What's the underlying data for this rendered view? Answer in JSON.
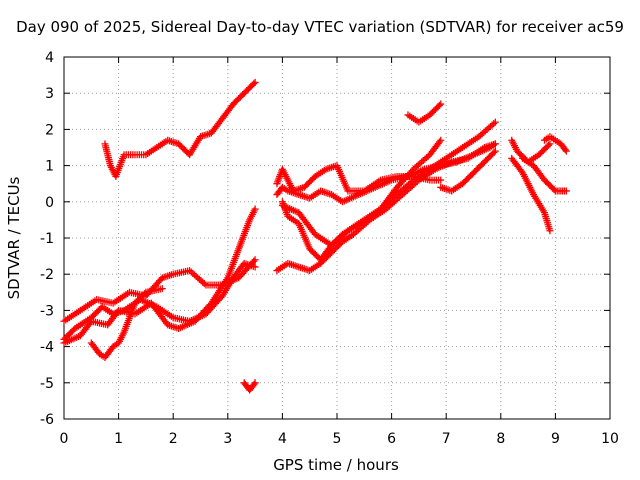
{
  "chart_data": {
    "type": "scatter",
    "title": "Day 090 of 2025, Sidereal Day-to-day VTEC variation (SDTVAR) for receiver ac59",
    "xlabel": "GPS time / hours",
    "ylabel": "SDTVAR / TECUs",
    "xlim": [
      0,
      10
    ],
    "ylim": [
      -6,
      4
    ],
    "x_ticks": [
      "0",
      "1",
      "2",
      "3",
      "4",
      "5",
      "6",
      "7",
      "8",
      "9",
      "10"
    ],
    "y_ticks": [
      "-6",
      "-5",
      "-4",
      "-3",
      "-2",
      "-1",
      "0",
      "1",
      "2",
      "3",
      "4"
    ],
    "grid": true,
    "marker": "+",
    "color": "#ff0000",
    "series": [
      {
        "x": [
          0.0,
          0.3,
          0.6,
          0.9,
          1.2,
          1.5,
          1.8,
          2.0,
          2.3,
          2.6,
          2.9,
          3.2,
          3.5
        ],
        "y": [
          -3.3,
          -3.0,
          -2.7,
          -2.8,
          -2.5,
          -2.6,
          -2.1,
          -2.0,
          -1.9,
          -2.3,
          -2.3,
          -2.1,
          -1.6
        ]
      },
      {
        "x": [
          0.0,
          0.2,
          0.5,
          0.7,
          0.9,
          1.1,
          1.4,
          1.7,
          2.0,
          2.3,
          2.6,
          2.9,
          3.1,
          3.3,
          3.5
        ],
        "y": [
          -3.8,
          -3.5,
          -3.2,
          -2.9,
          -3.1,
          -3.0,
          -2.7,
          -2.9,
          -3.2,
          -3.3,
          -3.1,
          -2.6,
          -2.1,
          -1.7,
          -1.8
        ]
      },
      {
        "x": [
          0.0,
          0.3,
          0.5,
          0.8,
          1.0,
          1.3,
          1.6,
          1.9,
          2.1,
          2.4,
          2.7,
          3.0,
          3.2,
          3.4,
          3.5
        ],
        "y": [
          -3.9,
          -3.7,
          -3.3,
          -3.4,
          -3.0,
          -3.1,
          -2.8,
          -3.4,
          -3.5,
          -3.3,
          -2.8,
          -2.1,
          -1.3,
          -0.5,
          -0.2
        ]
      },
      {
        "x": [
          0.5,
          0.65,
          0.75,
          0.9,
          1.0,
          1.1,
          1.3,
          1.5,
          1.8
        ],
        "y": [
          -3.9,
          -4.2,
          -4.3,
          -4.0,
          -3.9,
          -3.6,
          -2.8,
          -2.5,
          -2.4
        ]
      },
      {
        "x": [
          0.75,
          0.85,
          0.95,
          1.1,
          1.3,
          1.5,
          1.7,
          1.9,
          2.1,
          2.3,
          2.5,
          2.7,
          2.9,
          3.1,
          3.3,
          3.5
        ],
        "y": [
          1.6,
          1.0,
          0.7,
          1.3,
          1.3,
          1.3,
          1.5,
          1.7,
          1.6,
          1.3,
          1.8,
          1.9,
          2.3,
          2.7,
          3.0,
          3.3
        ]
      },
      {
        "x": [
          3.3,
          3.4,
          3.5
        ],
        "y": [
          -5.0,
          -5.2,
          -5.0
        ]
      },
      {
        "x": [
          3.9,
          4.1,
          4.3,
          4.5,
          4.7,
          4.9,
          5.1,
          5.3,
          5.6,
          5.9,
          6.2,
          6.5,
          6.8,
          7.1,
          7.4,
          7.7,
          7.9
        ],
        "y": [
          -1.9,
          -1.7,
          -1.8,
          -1.9,
          -1.7,
          -1.4,
          -1.1,
          -0.9,
          -0.5,
          -0.2,
          0.2,
          0.6,
          0.9,
          1.1,
          1.2,
          1.5,
          1.6
        ]
      },
      {
        "x": [
          3.9,
          4.0,
          4.1,
          4.3,
          4.5,
          4.7,
          4.9,
          5.1,
          5.4,
          5.7,
          6.0,
          6.3,
          6.6,
          6.9,
          7.2,
          7.5,
          7.8,
          7.9
        ],
        "y": [
          0.2,
          0.4,
          0.3,
          0.2,
          0.1,
          0.3,
          0.2,
          0.0,
          0.2,
          0.4,
          0.6,
          0.7,
          0.9,
          1.0,
          1.1,
          1.3,
          1.5,
          1.6
        ]
      },
      {
        "x": [
          4.0,
          4.1,
          4.3,
          4.5,
          4.7,
          4.9,
          5.1,
          5.3,
          5.5,
          5.8,
          6.1,
          6.4,
          6.7,
          6.9
        ],
        "y": [
          0.0,
          -0.4,
          -0.6,
          -1.3,
          -1.6,
          -1.2,
          -0.9,
          -0.7,
          -0.5,
          -0.2,
          0.4,
          0.9,
          1.3,
          1.7
        ]
      },
      {
        "x": [
          3.9,
          4.0,
          4.2,
          4.4,
          4.6,
          4.8,
          5.0,
          5.2,
          5.5,
          5.8,
          6.1,
          6.4,
          6.7,
          6.9
        ],
        "y": [
          0.5,
          0.9,
          0.3,
          0.4,
          0.7,
          0.9,
          1.0,
          0.3,
          0.3,
          0.6,
          0.7,
          0.7,
          0.6,
          0.6
        ]
      },
      {
        "x": [
          4.0,
          4.3,
          4.6,
          4.9,
          5.2,
          5.5,
          5.8,
          6.1,
          6.4,
          6.7,
          7.0,
          7.3,
          7.6,
          7.9
        ],
        "y": [
          -0.1,
          -0.3,
          -0.9,
          -1.2,
          -0.8,
          -0.5,
          -0.2,
          0.2,
          0.6,
          0.9,
          1.2,
          1.5,
          1.8,
          2.2
        ]
      },
      {
        "x": [
          6.3,
          6.5,
          6.7,
          6.9
        ],
        "y": [
          2.4,
          2.2,
          2.4,
          2.7
        ]
      },
      {
        "x": [
          6.9,
          7.1,
          7.3,
          7.5,
          7.7,
          7.9
        ],
        "y": [
          0.4,
          0.3,
          0.5,
          0.8,
          1.1,
          1.4
        ]
      },
      {
        "x": [
          8.2,
          8.3,
          8.5,
          8.7,
          8.9
        ],
        "y": [
          1.7,
          1.4,
          1.1,
          1.3,
          1.6
        ]
      },
      {
        "x": [
          8.2,
          8.4,
          8.6,
          8.8,
          8.9
        ],
        "y": [
          1.2,
          0.8,
          0.2,
          -0.3,
          -0.8
        ]
      },
      {
        "x": [
          8.4,
          8.6,
          8.8,
          9.0,
          9.1,
          9.2
        ],
        "y": [
          1.2,
          1.0,
          0.6,
          0.3,
          0.3,
          0.3
        ]
      },
      {
        "x": [
          8.8,
          8.9,
          9.1,
          9.2
        ],
        "y": [
          1.7,
          1.8,
          1.6,
          1.4
        ]
      }
    ]
  }
}
